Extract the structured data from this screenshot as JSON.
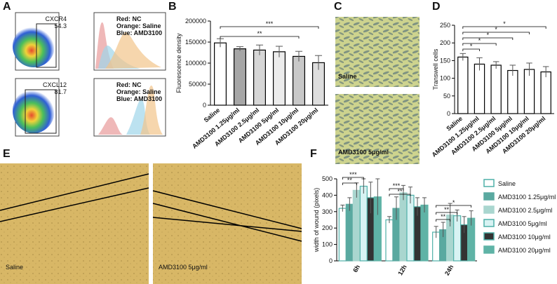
{
  "figure": {
    "panel_labels": [
      "A",
      "B",
      "C",
      "D",
      "E",
      "F"
    ]
  },
  "panel_a": {
    "plots": [
      {
        "marker": "CXCR4",
        "percent": 54.3,
        "legend": [
          "Red: NC",
          "Orange: Saline",
          "Blue: AMD3100"
        ]
      },
      {
        "marker": "CXCL12",
        "percent": 81.7,
        "legend": [
          "Red: NC",
          "Orange: Saline",
          "Blue: AMD3100"
        ]
      }
    ]
  },
  "panel_c": {
    "images": [
      "Saline",
      "AMD3100 5μg/ml"
    ]
  },
  "panel_e": {
    "images": [
      "Saline",
      "AMD3100 5μg/ml"
    ]
  },
  "chart_data": [
    {
      "type": "bar",
      "ylabel": "Fluorescence density",
      "categories": [
        "Saline",
        "AMD3100 1.25μg/ml",
        "AMD3100 2.5μg/ml",
        "AMD3100 5μg/ml",
        "AMD3100 10μg/ml",
        "AMD3100 20μg/ml"
      ],
      "values": [
        148000,
        134000,
        131000,
        127000,
        116000,
        101000
      ],
      "errors": [
        10000,
        5000,
        12000,
        13000,
        12000,
        17000
      ],
      "colors": [
        "#ffffff",
        "#a6a6a6",
        "#d6d6d6",
        "#ececec",
        "#c8c8c8",
        "#dedede"
      ],
      "ylim": [
        0,
        200000
      ],
      "yticks": [
        0,
        50000,
        100000,
        150000,
        200000
      ],
      "annotations": [
        "***",
        "**"
      ]
    },
    {
      "type": "bar",
      "ylabel": "Transwell cells",
      "categories": [
        "Saline",
        "AMD3100 1.25μg/ml",
        "AMD3100 2.5μg/ml",
        "AMD3100 5μg/ml",
        "AMD3100 10μg/ml",
        "AMD3100 20μg/ml"
      ],
      "values": [
        160,
        140,
        137,
        122,
        125,
        118
      ],
      "errors": [
        10,
        18,
        10,
        15,
        18,
        15
      ],
      "color": "#ffffff",
      "ylim": [
        0,
        250
      ],
      "yticks": [
        0,
        50,
        100,
        150,
        200,
        250
      ],
      "annotations": [
        "*",
        "*",
        "*",
        "*",
        "*"
      ]
    },
    {
      "type": "bar",
      "ylabel": "width of wound (pixels)",
      "categories": [
        "6h",
        "12h",
        "24h"
      ],
      "series": [
        {
          "name": "Saline",
          "color": "#ffffff",
          "edgecolor": "#4fb0a8",
          "values": [
            320,
            250,
            175
          ],
          "errors": [
            20,
            20,
            35
          ]
        },
        {
          "name": "AMD3100 1.25μg/ml",
          "color": "#5aa9a0",
          "edgecolor": "#5aa9a0",
          "values": [
            345,
            320,
            190
          ],
          "errors": [
            40,
            70,
            45
          ]
        },
        {
          "name": "AMD3100 2.5μg/ml",
          "color": "#a9d6cf",
          "edgecolor": "#a9d6cf",
          "values": [
            430,
            415,
            280
          ],
          "errors": [
            45,
            45,
            70
          ]
        },
        {
          "name": "AMD3100 5μg/ml",
          "color": "#d8f3f3",
          "edgecolor": "#4fb0a8",
          "values": [
            455,
            400,
            275
          ],
          "errors": [
            45,
            50,
            35
          ]
        },
        {
          "name": "AMD3100 10μg/ml",
          "color": "#333333",
          "edgecolor": "#4fb0a8",
          "values": [
            385,
            330,
            220
          ],
          "errors": [
            95,
            55,
            50
          ]
        },
        {
          "name": "AMD3100 20μg/ml",
          "color": "#5fb3a6",
          "edgecolor": "#5fb3a6",
          "values": [
            390,
            340,
            260
          ],
          "errors": [
            110,
            45,
            45
          ]
        }
      ],
      "ylim": [
        0,
        500
      ],
      "yticks": [
        0,
        100,
        200,
        300,
        400,
        500
      ],
      "annotations": [
        "***",
        "**",
        "***",
        "**",
        "*",
        "**",
        "**"
      ]
    }
  ]
}
